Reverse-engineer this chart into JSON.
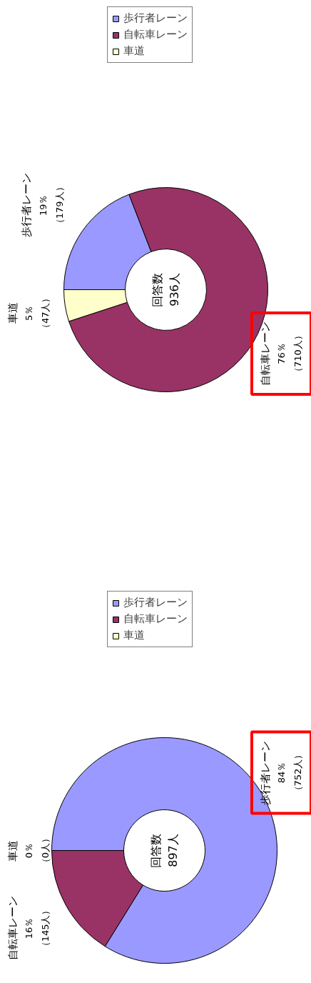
{
  "chart_data": [
    {
      "type": "donut",
      "categories": [
        "歩行者レーン",
        "自転車レーン",
        "車道"
      ],
      "values": [
        752,
        145,
        0
      ],
      "colors": [
        "#9999ff",
        "#993366",
        "#ffffcc"
      ],
      "value_labels": [
        "84％（752人）",
        "16％（145人）",
        "0％（0人）"
      ],
      "annotations": [
        "回答数\n897人"
      ],
      "legend": "top"
    },
    {
      "type": "donut",
      "categories": [
        "歩行者レーン",
        "自転車レーン",
        "車道"
      ],
      "values": [
        179,
        710,
        47
      ],
      "colors": [
        "#9999ff",
        "#993366",
        "#ffffcc"
      ],
      "value_labels": [
        "19％（179人）",
        "76％（710人）",
        "5％（47人）"
      ],
      "annotations": [
        "回答数\n936人"
      ],
      "legend": "top"
    }
  ]
}
